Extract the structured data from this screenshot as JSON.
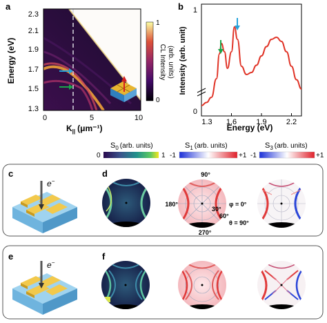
{
  "panel_letters": {
    "a": "a",
    "b": "b",
    "c": "c",
    "d": "d",
    "e": "e",
    "f": "f"
  },
  "panel_a": {
    "ylabel": "Energy (eV)",
    "xlabel": "K",
    "xlabel_sub": "||",
    "xlabel_unit": "(μm⁻¹)",
    "yticks": [
      "2.3",
      "2.1",
      "1.9",
      "1.7",
      "1.5",
      "1.3"
    ],
    "xticks": [
      "0",
      "5",
      "10"
    ],
    "colorbar_label": "CL Intensity",
    "colorbar_unit": "(arb. units)",
    "colorbar_max": "1",
    "colorbar_min": "0",
    "colors": {
      "dark": "#120a24",
      "mid": "#b8365c",
      "bright": "#f7c948"
    }
  },
  "panel_b": {
    "ylabel": "Intensity (arb. unit)",
    "xlabel": "Energy (eV)",
    "xticks": [
      "1.3",
      "1.6",
      "1.9",
      "2.2"
    ],
    "yticks": [
      "1",
      "0"
    ],
    "line_color": "#e03326",
    "arrow_colors": {
      "green": "#19a64a",
      "blue": "#25a3dc"
    }
  },
  "chart_data": [
    {
      "type": "line",
      "x": [
        1.3,
        1.35,
        1.4,
        1.45,
        1.48,
        1.5,
        1.53,
        1.56,
        1.6,
        1.63,
        1.66,
        1.7,
        1.75,
        1.8,
        1.85,
        1.9,
        1.95,
        2.0,
        2.05,
        2.1,
        2.15,
        2.2,
        2.25,
        2.3
      ],
      "values": [
        0.06,
        0.09,
        0.14,
        0.32,
        0.56,
        0.66,
        0.58,
        0.42,
        0.58,
        0.82,
        0.7,
        0.44,
        0.36,
        0.38,
        0.45,
        0.54,
        0.63,
        0.7,
        0.72,
        0.68,
        0.58,
        0.44,
        0.31,
        0.22
      ],
      "xlabel": "Energy (eV)",
      "ylabel": "Intensity (arb. unit)",
      "xlim": [
        1.3,
        2.3
      ],
      "ylim": [
        0,
        1
      ]
    }
  ],
  "colorbars": {
    "s0": {
      "label": "S",
      "sub": "0",
      "unit": "(arb. units)",
      "min": "0",
      "max": "1"
    },
    "s1": {
      "label": "S",
      "sub": "1",
      "unit": "(arb. units)",
      "min": "-1",
      "max": "+1"
    },
    "s3": {
      "label": "S",
      "sub": "3",
      "unit": "(arb. units)",
      "min": "-1",
      "max": "+1"
    }
  },
  "electron": {
    "label": "e",
    "sup": "−"
  },
  "polar_labels": {
    "top": "90°",
    "left": "180°",
    "right": "φ = 0°",
    "bottom": "270°",
    "r30": "30°",
    "r60": "60°",
    "theta": "θ = 90°"
  }
}
